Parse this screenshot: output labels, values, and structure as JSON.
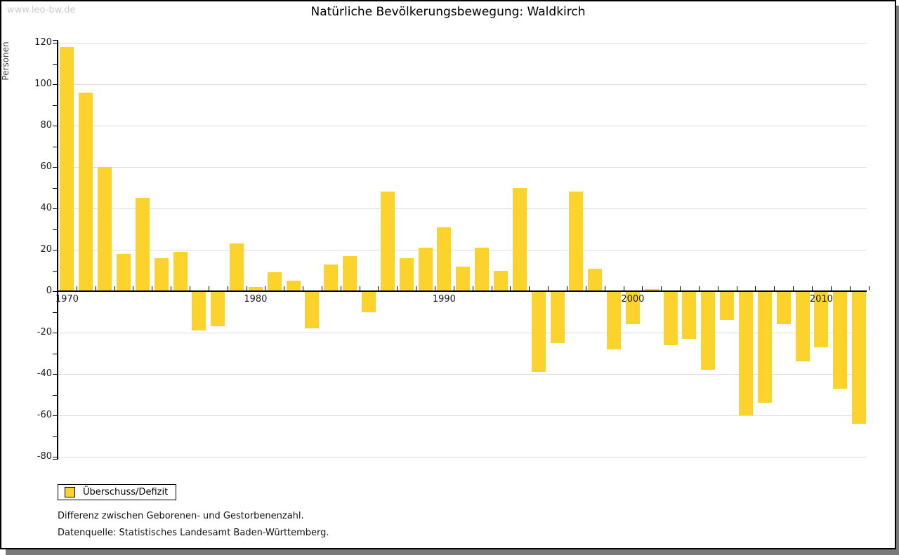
{
  "watermark": "www.leo-bw.de",
  "title": "Natürliche Bevölkerungsbewegung: Waldkirch",
  "legend": {
    "label": "Überschuss/Defizit"
  },
  "footnotes": [
    "Differenz zwischen Geborenen- und Gestorbenenzahl.",
    "Datenquelle: Statistisches Landesamt Baden-Württemberg."
  ],
  "colors": {
    "bar": "#FBD32C",
    "grid": "#dcdcdc",
    "axis": "#000000",
    "shadow": "#7a7a7a",
    "watermark": "#cccccc"
  },
  "chart_data": {
    "type": "bar",
    "title": "Natürliche Bevölkerungsbewegung: Waldkirch",
    "xlabel": "",
    "ylabel": "Personen",
    "ylim": [
      -80,
      120
    ],
    "y_tick_step": 20,
    "y_minor_tick_step": 10,
    "x_axis_labeled_ticks": [
      1970,
      1980,
      1990,
      2000,
      2010
    ],
    "grid": true,
    "legend_position": "bottom-left",
    "series_name": "Überschuss/Defizit",
    "categories": [
      1970,
      1971,
      1972,
      1973,
      1974,
      1975,
      1976,
      1977,
      1978,
      1979,
      1980,
      1981,
      1982,
      1983,
      1984,
      1985,
      1986,
      1987,
      1988,
      1989,
      1990,
      1991,
      1992,
      1993,
      1994,
      1995,
      1996,
      1997,
      1998,
      1999,
      2000,
      2001,
      2002,
      2003,
      2004,
      2005,
      2006,
      2007,
      2008,
      2009,
      2010,
      2011,
      2012
    ],
    "values": [
      118,
      96,
      60,
      18,
      45,
      16,
      19,
      -19,
      -17,
      23,
      2,
      9,
      5,
      -18,
      13,
      17,
      -10,
      48,
      16,
      21,
      31,
      12,
      21,
      10,
      50,
      -39,
      -25,
      48,
      11,
      -28,
      -16,
      1,
      -26,
      -23,
      -38,
      -14,
      -60,
      -54,
      -16,
      -34,
      -27,
      -47,
      -64
    ]
  }
}
